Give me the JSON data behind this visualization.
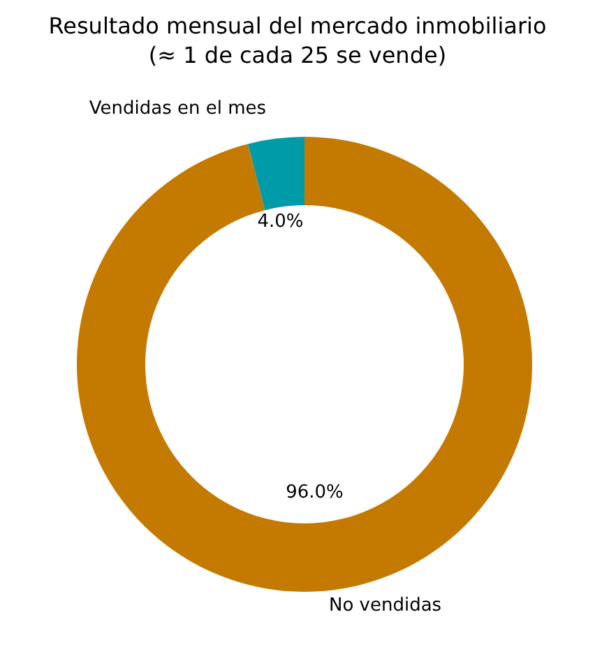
{
  "chart_data": {
    "type": "donut",
    "title": "Resultado mensual del mercado inmobiliario\n(≈ 1 de cada 25 se vende)",
    "categories": [
      "Vendidas en el mes",
      "No vendidas"
    ],
    "values": [
      4,
      96
    ],
    "value_labels": [
      "4.0%",
      "96.0%"
    ],
    "colors": [
      "#009ba8",
      "#c47a00"
    ]
  }
}
